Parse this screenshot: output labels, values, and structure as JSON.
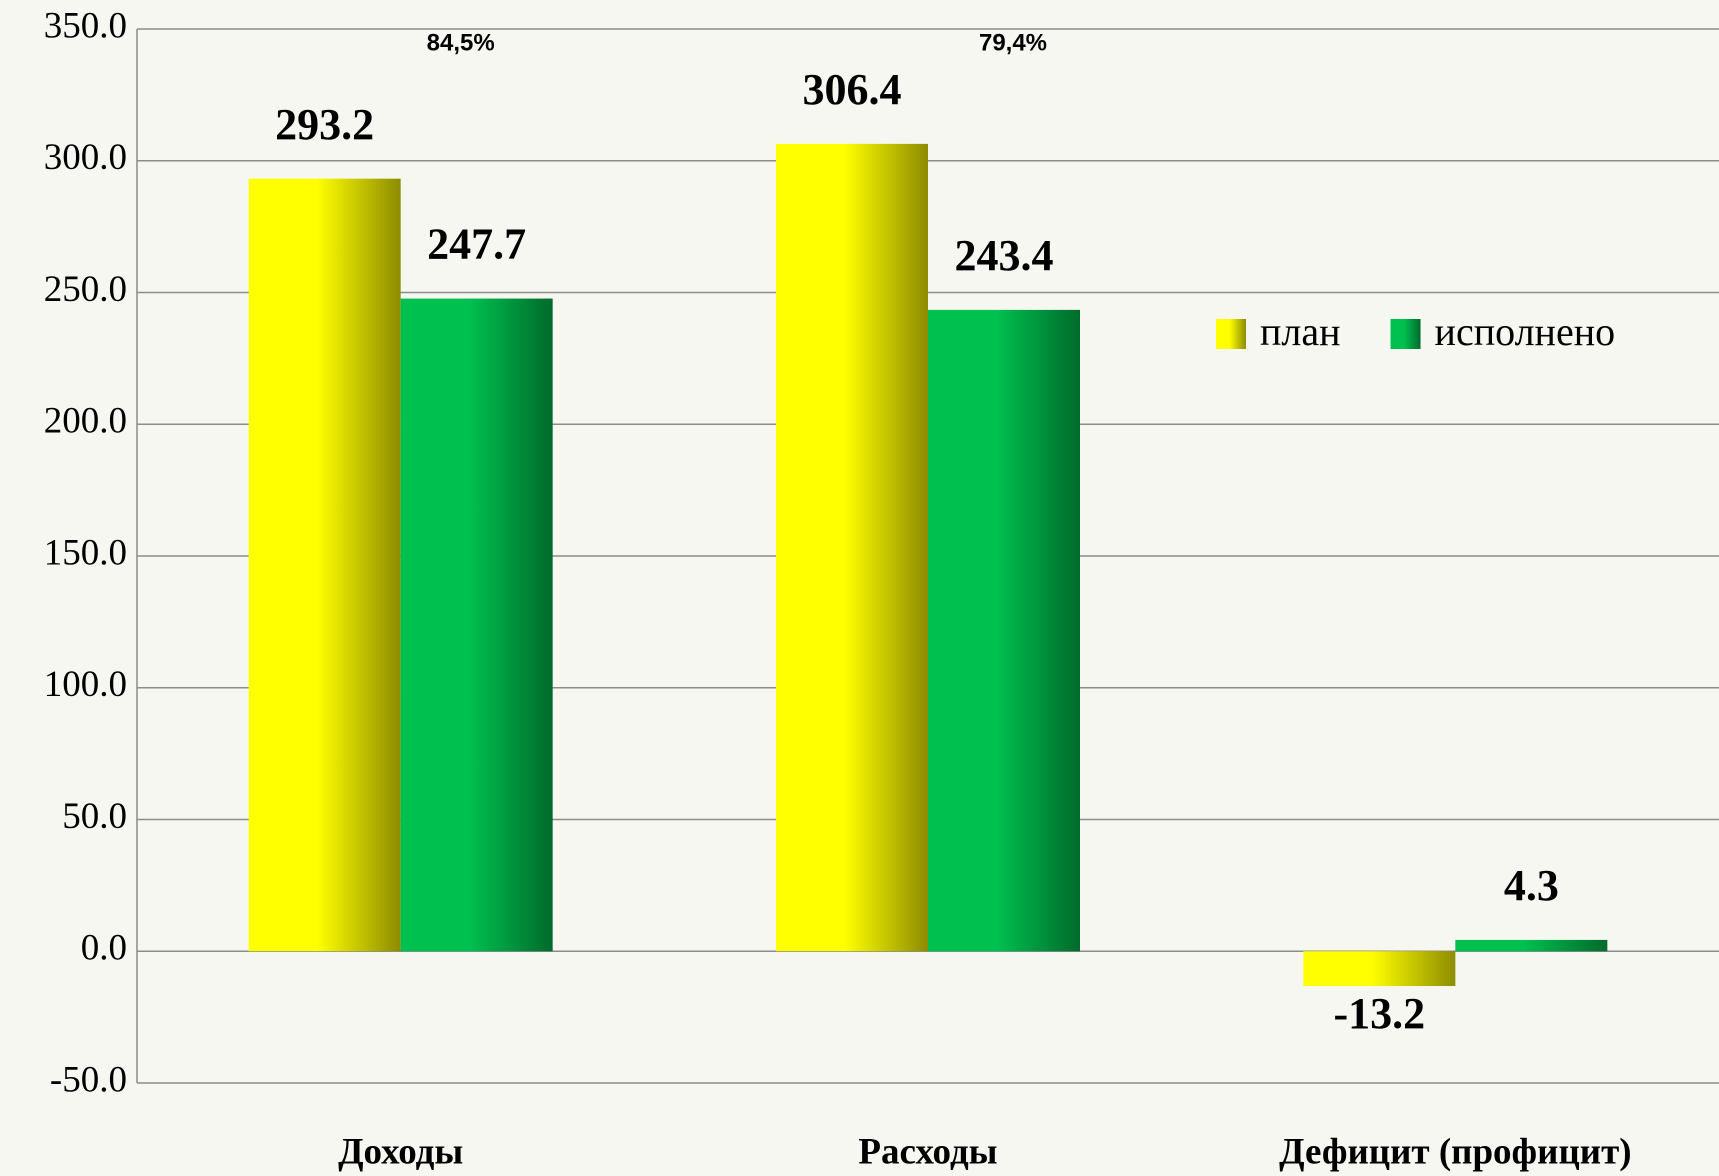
{
  "chart_data": {
    "type": "bar",
    "categories": [
      "Доходы",
      "Расходы",
      "Дефицит (профицит)"
    ],
    "series": [
      {
        "name": "план",
        "color": "#ffff00",
        "values": [
          293.2,
          306.4,
          -13.2
        ]
      },
      {
        "name": "исполнено",
        "color": "#00c050",
        "values": [
          247.7,
          243.4,
          4.3
        ]
      }
    ],
    "annotations": [
      "84,5%",
      "79,4%"
    ],
    "ylim": [
      -50,
      350
    ],
    "yticks": [
      {
        "value": -50,
        "label": "-50.0"
      },
      {
        "value": 0,
        "label": "0.0"
      },
      {
        "value": 50,
        "label": "50.0"
      },
      {
        "value": 100,
        "label": "100.0"
      },
      {
        "value": 150,
        "label": "150.0"
      },
      {
        "value": 200,
        "label": "200.0"
      },
      {
        "value": 250,
        "label": "250.0"
      },
      {
        "value": 300,
        "label": "300.0"
      },
      {
        "value": 350,
        "label": "350.0"
      }
    ],
    "grid": true,
    "legend": "right"
  }
}
